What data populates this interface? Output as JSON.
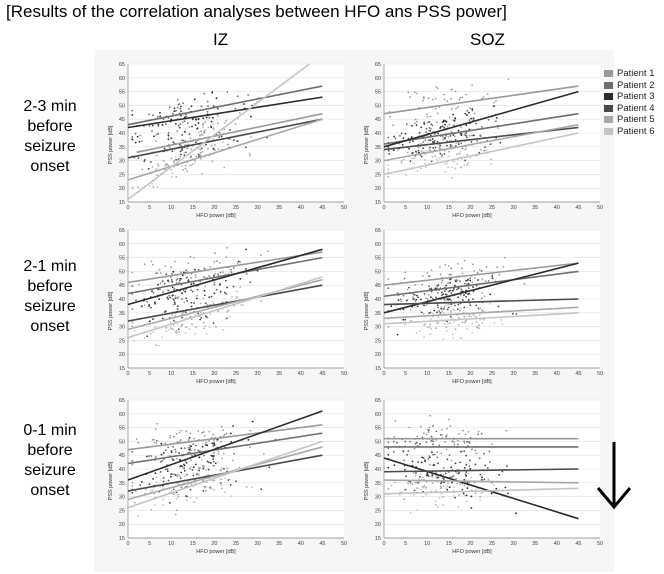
{
  "title": "[Results of the correlation analyses between HFO ans PSS power]",
  "columns": [
    "IZ",
    "SOZ"
  ],
  "rows": [
    {
      "lines": [
        "2-3 min",
        "before",
        "seizure",
        "onset"
      ]
    },
    {
      "lines": [
        "2-1 min",
        "before",
        "seizure",
        "onset"
      ]
    },
    {
      "lines": [
        "0-1 min",
        "before",
        "seizure",
        "onset"
      ]
    }
  ],
  "legend": [
    {
      "name": "Patient 1",
      "color": "#9a9a9a"
    },
    {
      "name": "Patient 2",
      "color": "#6e6e6e"
    },
    {
      "name": "Patient 3",
      "color": "#2b2b2b"
    },
    {
      "name": "Patient 4",
      "color": "#4a4a4a"
    },
    {
      "name": "Patient 5",
      "color": "#a8a8a8"
    },
    {
      "name": "Patient 6",
      "color": "#c4c4c4"
    }
  ],
  "chart_data": [
    {
      "type": "scatter",
      "row": 0,
      "col": 0,
      "xlabel": "HFO power [dB]",
      "ylabel": "PSS power [dB]",
      "xlim": [
        0,
        50
      ],
      "ylim": [
        15,
        65
      ],
      "xticks": [
        "0",
        "5",
        "10",
        "15",
        "20",
        "25",
        "30",
        "35",
        "40",
        "45",
        "50"
      ],
      "yticks": [
        "15",
        "20",
        "25",
        "30",
        "35",
        "40",
        "45",
        "50",
        "55",
        "60",
        "65"
      ],
      "fits": [
        {
          "patient": "Patient 1",
          "x": [
            2,
            45
          ],
          "y": [
            33,
            47
          ]
        },
        {
          "patient": "Patient 2",
          "x": [
            0,
            45
          ],
          "y": [
            43,
            57
          ]
        },
        {
          "patient": "Patient 3",
          "x": [
            0,
            45
          ],
          "y": [
            42,
            53
          ]
        },
        {
          "patient": "Patient 4",
          "x": [
            0,
            45
          ],
          "y": [
            31,
            45
          ]
        },
        {
          "patient": "Patient 5",
          "x": [
            0,
            45
          ],
          "y": [
            23,
            45
          ]
        },
        {
          "patient": "Patient 6",
          "x": [
            0,
            42
          ],
          "y": [
            16,
            65
          ]
        }
      ]
    },
    {
      "type": "scatter",
      "row": 0,
      "col": 1,
      "xlabel": "HFO power [dB]",
      "ylabel": "PSS power [dB]",
      "xlim": [
        0,
        50
      ],
      "ylim": [
        15,
        65
      ],
      "xticks": [
        "0",
        "5",
        "10",
        "15",
        "20",
        "25",
        "30",
        "35",
        "40",
        "45",
        "50"
      ],
      "yticks": [
        "15",
        "20",
        "25",
        "30",
        "35",
        "40",
        "45",
        "50",
        "55",
        "60",
        "65"
      ],
      "fits": [
        {
          "patient": "Patient 1",
          "x": [
            0,
            45
          ],
          "y": [
            47,
            57
          ]
        },
        {
          "patient": "Patient 2",
          "x": [
            0,
            45
          ],
          "y": [
            36,
            47
          ]
        },
        {
          "patient": "Patient 3",
          "x": [
            0,
            45
          ],
          "y": [
            35,
            55
          ]
        },
        {
          "patient": "Patient 4",
          "x": [
            0,
            45
          ],
          "y": [
            34,
            42
          ]
        },
        {
          "patient": "Patient 5",
          "x": [
            0,
            45
          ],
          "y": [
            30,
            43
          ]
        },
        {
          "patient": "Patient 6",
          "x": [
            0,
            45
          ],
          "y": [
            25,
            40
          ]
        }
      ]
    },
    {
      "type": "scatter",
      "row": 1,
      "col": 0,
      "xlabel": "HFO power [dB]",
      "ylabel": "PSS power [dB]",
      "xlim": [
        0,
        50
      ],
      "ylim": [
        15,
        65
      ],
      "xticks": [
        "0",
        "5",
        "10",
        "15",
        "20",
        "25",
        "30",
        "35",
        "40",
        "45",
        "50"
      ],
      "yticks": [
        "15",
        "20",
        "25",
        "30",
        "35",
        "40",
        "45",
        "50",
        "55",
        "60",
        "65"
      ],
      "fits": [
        {
          "patient": "Patient 1",
          "x": [
            0,
            45
          ],
          "y": [
            46,
            57
          ]
        },
        {
          "patient": "Patient 2",
          "x": [
            0,
            45
          ],
          "y": [
            42,
            55
          ]
        },
        {
          "patient": "Patient 3",
          "x": [
            0,
            45
          ],
          "y": [
            38,
            58
          ]
        },
        {
          "patient": "Patient 4",
          "x": [
            0,
            45
          ],
          "y": [
            32,
            45
          ]
        },
        {
          "patient": "Patient 5",
          "x": [
            0,
            45
          ],
          "y": [
            29,
            47
          ]
        },
        {
          "patient": "Patient 6",
          "x": [
            0,
            45
          ],
          "y": [
            26,
            48
          ]
        }
      ]
    },
    {
      "type": "scatter",
      "row": 1,
      "col": 1,
      "xlabel": "HFO power [dB]",
      "ylabel": "PSS power [dB]",
      "xlim": [
        0,
        50
      ],
      "ylim": [
        15,
        65
      ],
      "xticks": [
        "0",
        "5",
        "10",
        "15",
        "20",
        "25",
        "30",
        "35",
        "40",
        "45",
        "50"
      ],
      "yticks": [
        "15",
        "20",
        "25",
        "30",
        "35",
        "40",
        "45",
        "50",
        "55",
        "60",
        "65"
      ],
      "fits": [
        {
          "patient": "Patient 1",
          "x": [
            0,
            45
          ],
          "y": [
            45,
            53
          ]
        },
        {
          "patient": "Patient 2",
          "x": [
            0,
            45
          ],
          "y": [
            41,
            50
          ]
        },
        {
          "patient": "Patient 3",
          "x": [
            0,
            45
          ],
          "y": [
            35,
            53
          ]
        },
        {
          "patient": "Patient 4",
          "x": [
            0,
            45
          ],
          "y": [
            38,
            40
          ]
        },
        {
          "patient": "Patient 5",
          "x": [
            0,
            45
          ],
          "y": [
            33,
            37
          ]
        },
        {
          "patient": "Patient 6",
          "x": [
            0,
            45
          ],
          "y": [
            31,
            35
          ]
        }
      ]
    },
    {
      "type": "scatter",
      "row": 2,
      "col": 0,
      "xlabel": "HFO power [dB]",
      "ylabel": "PSS power [dB]",
      "xlim": [
        0,
        50
      ],
      "ylim": [
        15,
        65
      ],
      "xticks": [
        "0",
        "5",
        "10",
        "15",
        "20",
        "25",
        "30",
        "35",
        "40",
        "45",
        "50"
      ],
      "yticks": [
        "15",
        "20",
        "25",
        "30",
        "35",
        "40",
        "45",
        "50",
        "55",
        "60",
        "65"
      ],
      "fits": [
        {
          "patient": "Patient 1",
          "x": [
            0,
            45
          ],
          "y": [
            47,
            56
          ]
        },
        {
          "patient": "Patient 2",
          "x": [
            0,
            45
          ],
          "y": [
            42,
            53
          ]
        },
        {
          "patient": "Patient 3",
          "x": [
            0,
            45
          ],
          "y": [
            36,
            61
          ]
        },
        {
          "patient": "Patient 4",
          "x": [
            0,
            45
          ],
          "y": [
            32,
            45
          ]
        },
        {
          "patient": "Patient 5",
          "x": [
            0,
            45
          ],
          "y": [
            29,
            48
          ]
        },
        {
          "patient": "Patient 6",
          "x": [
            0,
            45
          ],
          "y": [
            26,
            50
          ]
        }
      ]
    },
    {
      "type": "scatter",
      "row": 2,
      "col": 1,
      "xlabel": "HFO power [dB]",
      "ylabel": "PSS power [dB]",
      "xlim": [
        0,
        50
      ],
      "ylim": [
        15,
        65
      ],
      "xticks": [
        "0",
        "5",
        "10",
        "15",
        "20",
        "25",
        "30",
        "35",
        "40",
        "45",
        "50"
      ],
      "yticks": [
        "15",
        "20",
        "25",
        "30",
        "35",
        "40",
        "45",
        "50",
        "55",
        "60",
        "65"
      ],
      "fits": [
        {
          "patient": "Patient 1",
          "x": [
            0,
            45
          ],
          "y": [
            51,
            51
          ]
        },
        {
          "patient": "Patient 2",
          "x": [
            0,
            45
          ],
          "y": [
            48,
            48
          ]
        },
        {
          "patient": "Patient 3",
          "x": [
            0,
            45
          ],
          "y": [
            44,
            22
          ]
        },
        {
          "patient": "Patient 4",
          "x": [
            0,
            45
          ],
          "y": [
            39,
            40
          ]
        },
        {
          "patient": "Patient 5",
          "x": [
            0,
            45
          ],
          "y": [
            36,
            35
          ]
        },
        {
          "patient": "Patient 6",
          "x": [
            0,
            45
          ],
          "y": [
            31,
            33
          ]
        }
      ]
    }
  ]
}
